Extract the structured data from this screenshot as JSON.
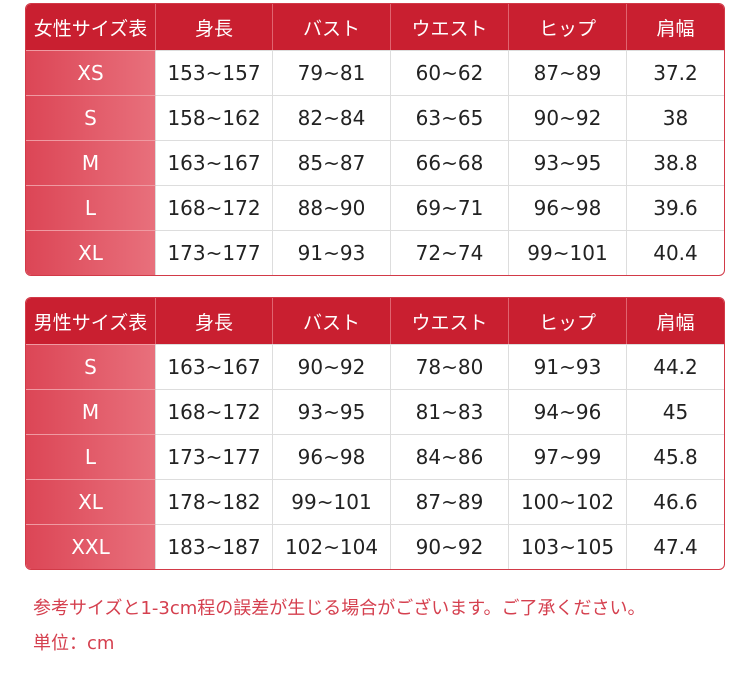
{
  "colors": {
    "header": "#c91f30",
    "size_column": "#e05a68",
    "note": "#d5404f"
  },
  "women": {
    "headers": [
      "女性サイズ表",
      "身長",
      "バスト",
      "ウエスト",
      "ヒップ",
      "肩幅"
    ],
    "rows": [
      [
        "XS",
        "153~157",
        "79~81",
        "60~62",
        "87~89",
        "37.2"
      ],
      [
        "S",
        "158~162",
        "82~84",
        "63~65",
        "90~92",
        "38"
      ],
      [
        "M",
        "163~167",
        "85~87",
        "66~68",
        "93~95",
        "38.8"
      ],
      [
        "L",
        "168~172",
        "88~90",
        "69~71",
        "96~98",
        "39.6"
      ],
      [
        "XL",
        "173~177",
        "91~93",
        "72~74",
        "99~101",
        "40.4"
      ]
    ]
  },
  "men": {
    "headers": [
      "男性サイズ表",
      "身長",
      "バスト",
      "ウエスト",
      "ヒップ",
      "肩幅"
    ],
    "rows": [
      [
        "S",
        "163~167",
        "90~92",
        "78~80",
        "91~93",
        "44.2"
      ],
      [
        "M",
        "168~172",
        "93~95",
        "81~83",
        "94~96",
        "45"
      ],
      [
        "L",
        "173~177",
        "96~98",
        "84~86",
        "97~99",
        "45.8"
      ],
      [
        "XL",
        "178~182",
        "99~101",
        "87~89",
        "100~102",
        "46.6"
      ],
      [
        "XXL",
        "183~187",
        "102~104",
        "90~92",
        "103~105",
        "47.4"
      ]
    ]
  },
  "notes": {
    "disclaimer": "参考サイズと1-3cm程の誤差が生じる場合がございます。ご了承ください。",
    "unit": "単位：cm"
  }
}
